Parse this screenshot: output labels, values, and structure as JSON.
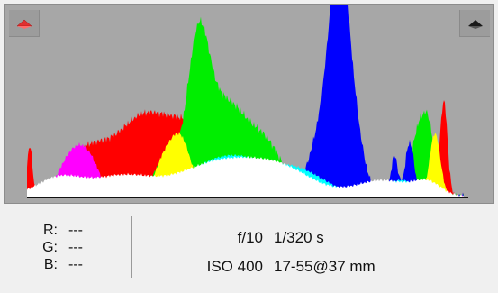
{
  "clipping": {
    "shadow_icon": "triangle-up-red-icon",
    "highlight_icon": "triangle-up-black-icon",
    "shadow_color": "#e03030",
    "highlight_color": "#1a1a1a"
  },
  "histogram": {
    "background": "#a7a7a7",
    "channels": [
      "red",
      "green",
      "blue",
      "yellow",
      "magenta",
      "cyan",
      "white"
    ]
  },
  "readout": {
    "r_label": "R:",
    "r_value": "---",
    "g_label": "G:",
    "g_value": "---",
    "b_label": "B:",
    "b_value": "---"
  },
  "camera": {
    "aperture": "f/10",
    "shutter": "1/320 s",
    "iso": "ISO 400",
    "focal": "17-55@37 mm"
  }
}
